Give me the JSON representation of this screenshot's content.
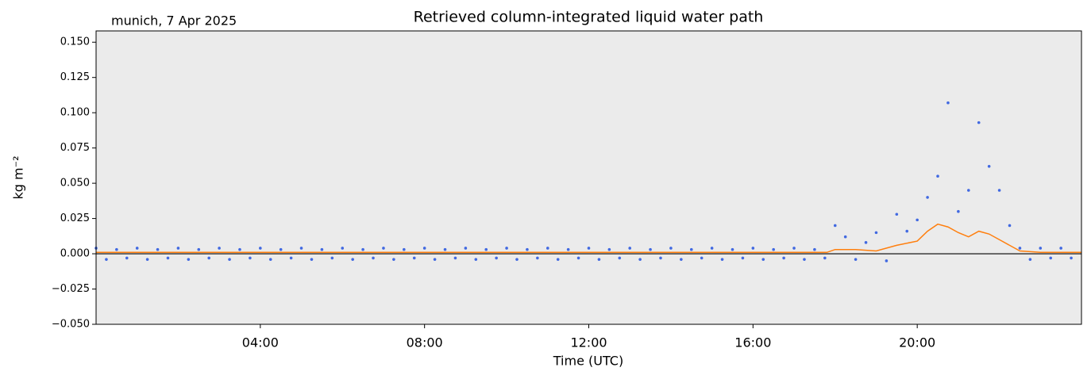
{
  "chart_data": {
    "type": "scatter",
    "title": "Retrieved column-integrated liquid water path",
    "annotation": "munich, 7 Apr 2025",
    "x_label": "Time (UTC)",
    "y_label": "kg m⁻²",
    "xlim": [
      0,
      24
    ],
    "ylim": [
      -0.05,
      0.158
    ],
    "xticks": [
      {
        "value": 4,
        "label": "04:00"
      },
      {
        "value": 8,
        "label": "08:00"
      },
      {
        "value": 12,
        "label": "12:00"
      },
      {
        "value": 16,
        "label": "16:00"
      },
      {
        "value": 20,
        "label": "20:00"
      }
    ],
    "yticks": [
      {
        "value": -0.05,
        "label": "−0.050"
      },
      {
        "value": -0.025,
        "label": "−0.025"
      },
      {
        "value": 0,
        "label": "0.000"
      },
      {
        "value": 0.025,
        "label": "0.025"
      },
      {
        "value": 0.05,
        "label": "0.050"
      },
      {
        "value": 0.075,
        "label": "0.075"
      },
      {
        "value": 0.1,
        "label": "0.100"
      },
      {
        "value": 0.125,
        "label": "0.125"
      },
      {
        "value": 0.15,
        "label": "0.150"
      }
    ],
    "zero_line": true,
    "background": "#ebebeb",
    "series": [
      {
        "type": "scatter",
        "color": "#4169e1",
        "x": [
          0,
          0.25,
          0.5,
          0.75,
          1,
          1.25,
          1.5,
          1.75,
          2,
          2.25,
          2.5,
          2.75,
          3,
          3.25,
          3.5,
          3.75,
          4,
          4.25,
          4.5,
          4.75,
          5,
          5.25,
          5.5,
          5.75,
          6,
          6.25,
          6.5,
          6.75,
          7,
          7.25,
          7.5,
          7.75,
          8,
          8.25,
          8.5,
          8.75,
          9,
          9.25,
          9.5,
          9.75,
          10,
          10.25,
          10.5,
          10.75,
          11,
          11.25,
          11.5,
          11.75,
          12,
          12.25,
          12.5,
          12.75,
          13,
          13.25,
          13.5,
          13.75,
          14,
          14.25,
          14.5,
          14.75,
          15,
          15.25,
          15.5,
          15.75,
          16,
          16.25,
          16.5,
          16.75,
          17,
          17.25,
          17.5,
          17.75,
          18,
          18.25,
          18.5,
          18.75,
          19,
          19.25,
          19.5,
          19.75,
          20,
          20.25,
          20.5,
          20.75,
          21,
          21.25,
          21.5,
          21.75,
          22,
          22.25,
          22.5,
          22.75,
          23,
          23.25,
          23.5,
          23.75
        ],
        "values": [
          0.004,
          -0.004,
          0.003,
          -0.003,
          0.004,
          -0.004,
          0.003,
          -0.003,
          0.004,
          -0.004,
          0.003,
          -0.003,
          0.004,
          -0.004,
          0.003,
          -0.003,
          0.004,
          -0.004,
          0.003,
          -0.003,
          0.004,
          -0.004,
          0.003,
          -0.003,
          0.004,
          -0.004,
          0.003,
          -0.003,
          0.004,
          -0.004,
          0.003,
          -0.003,
          0.004,
          -0.004,
          0.003,
          -0.003,
          0.004,
          -0.004,
          0.003,
          -0.003,
          0.004,
          -0.004,
          0.003,
          -0.003,
          0.004,
          -0.004,
          0.003,
          -0.003,
          0.004,
          -0.004,
          0.003,
          -0.003,
          0.004,
          -0.004,
          0.003,
          -0.003,
          0.004,
          -0.004,
          0.003,
          -0.003,
          0.004,
          -0.004,
          0.003,
          -0.003,
          0.004,
          -0.004,
          0.003,
          -0.003,
          0.004,
          -0.004,
          0.003,
          -0.003,
          0.02,
          0.012,
          -0.004,
          0.008,
          0.015,
          -0.005,
          0.028,
          0.016,
          0.024,
          0.04,
          0.055,
          0.107,
          0.03,
          0.045,
          0.093,
          0.062,
          0.045,
          0.02,
          0.004,
          -0.004,
          0.004,
          -0.003,
          0.004,
          -0.003
        ]
      },
      {
        "type": "line",
        "color": "#ff7f0e",
        "x": [
          0,
          17.8,
          18,
          18.5,
          19,
          19.5,
          20,
          20.25,
          20.5,
          20.75,
          21,
          21.25,
          21.5,
          21.75,
          22,
          22.5,
          23,
          24
        ],
        "values": [
          0.001,
          0.001,
          0.003,
          0.003,
          0.002,
          0.006,
          0.009,
          0.016,
          0.021,
          0.019,
          0.015,
          0.012,
          0.016,
          0.014,
          0.01,
          0.002,
          0.001,
          0.001
        ]
      }
    ]
  }
}
